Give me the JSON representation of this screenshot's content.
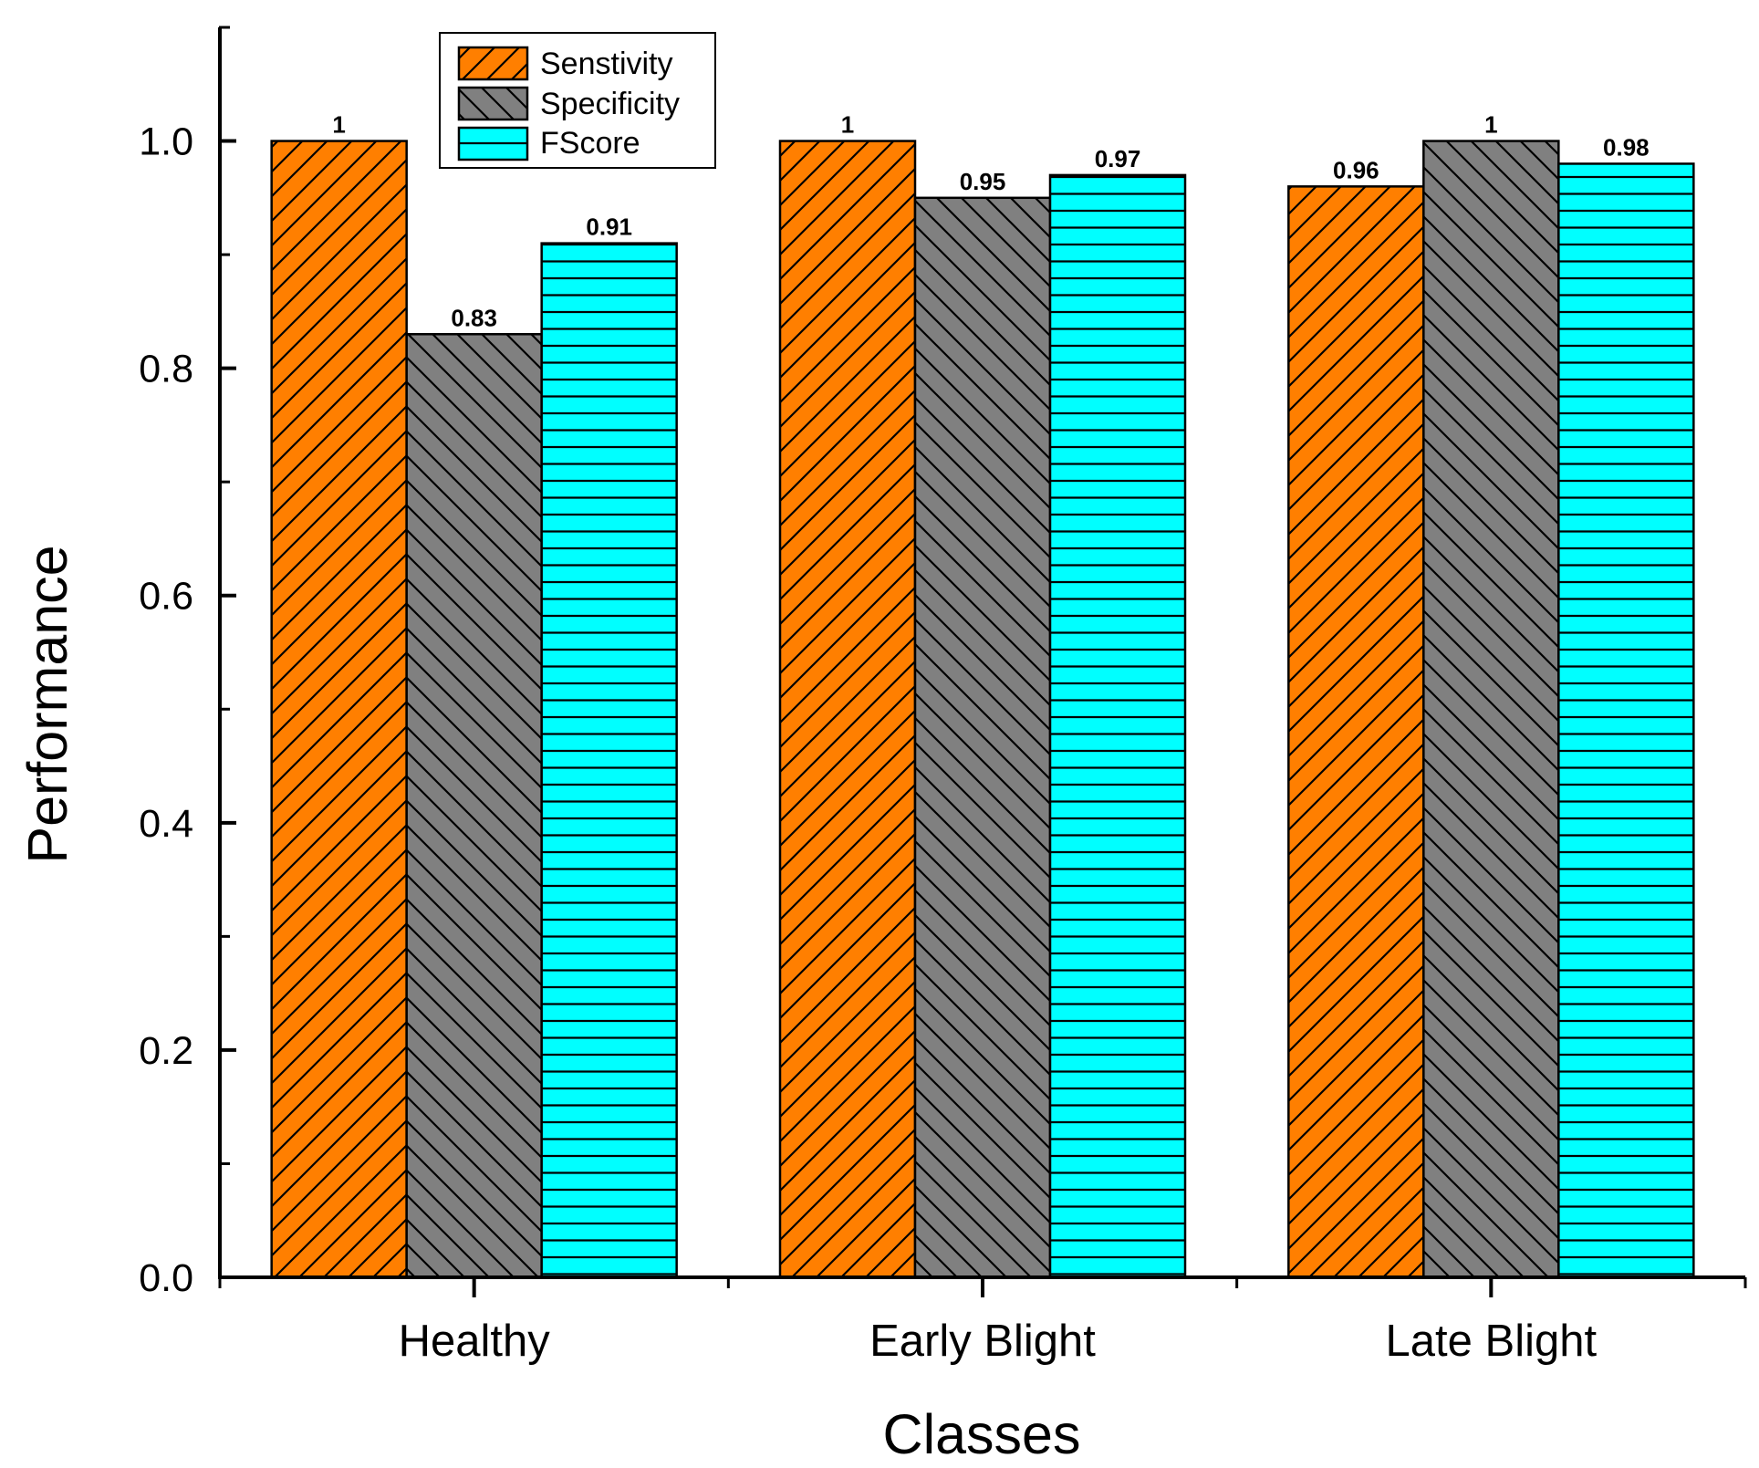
{
  "chart_data": {
    "type": "bar",
    "title": "",
    "xlabel": "Classes",
    "ylabel": "Performance",
    "ylim": [
      0,
      1.1
    ],
    "yticks": [
      "0.0",
      "0.2",
      "0.4",
      "0.6",
      "0.8",
      "1.0"
    ],
    "categories": [
      "Healthy",
      "Early Blight",
      "Late Blight"
    ],
    "series": [
      {
        "name": "Senstivity",
        "values": [
          1,
          1,
          0.96
        ],
        "labels": [
          "1",
          "1",
          "0.96"
        ],
        "color": "#ff7f00",
        "pattern": "diagonal-up"
      },
      {
        "name": "Specificity",
        "values": [
          0.83,
          0.95,
          1
        ],
        "labels": [
          "0.83",
          "0.95",
          "1"
        ],
        "color": "#808080",
        "pattern": "diagonal-down"
      },
      {
        "name": "FScore",
        "values": [
          0.91,
          0.97,
          0.98
        ],
        "labels": [
          "0.91",
          "0.97",
          "0.98"
        ],
        "color": "#00ffff",
        "pattern": "horizontal"
      }
    ],
    "legend": "top-left",
    "grid": false
  }
}
